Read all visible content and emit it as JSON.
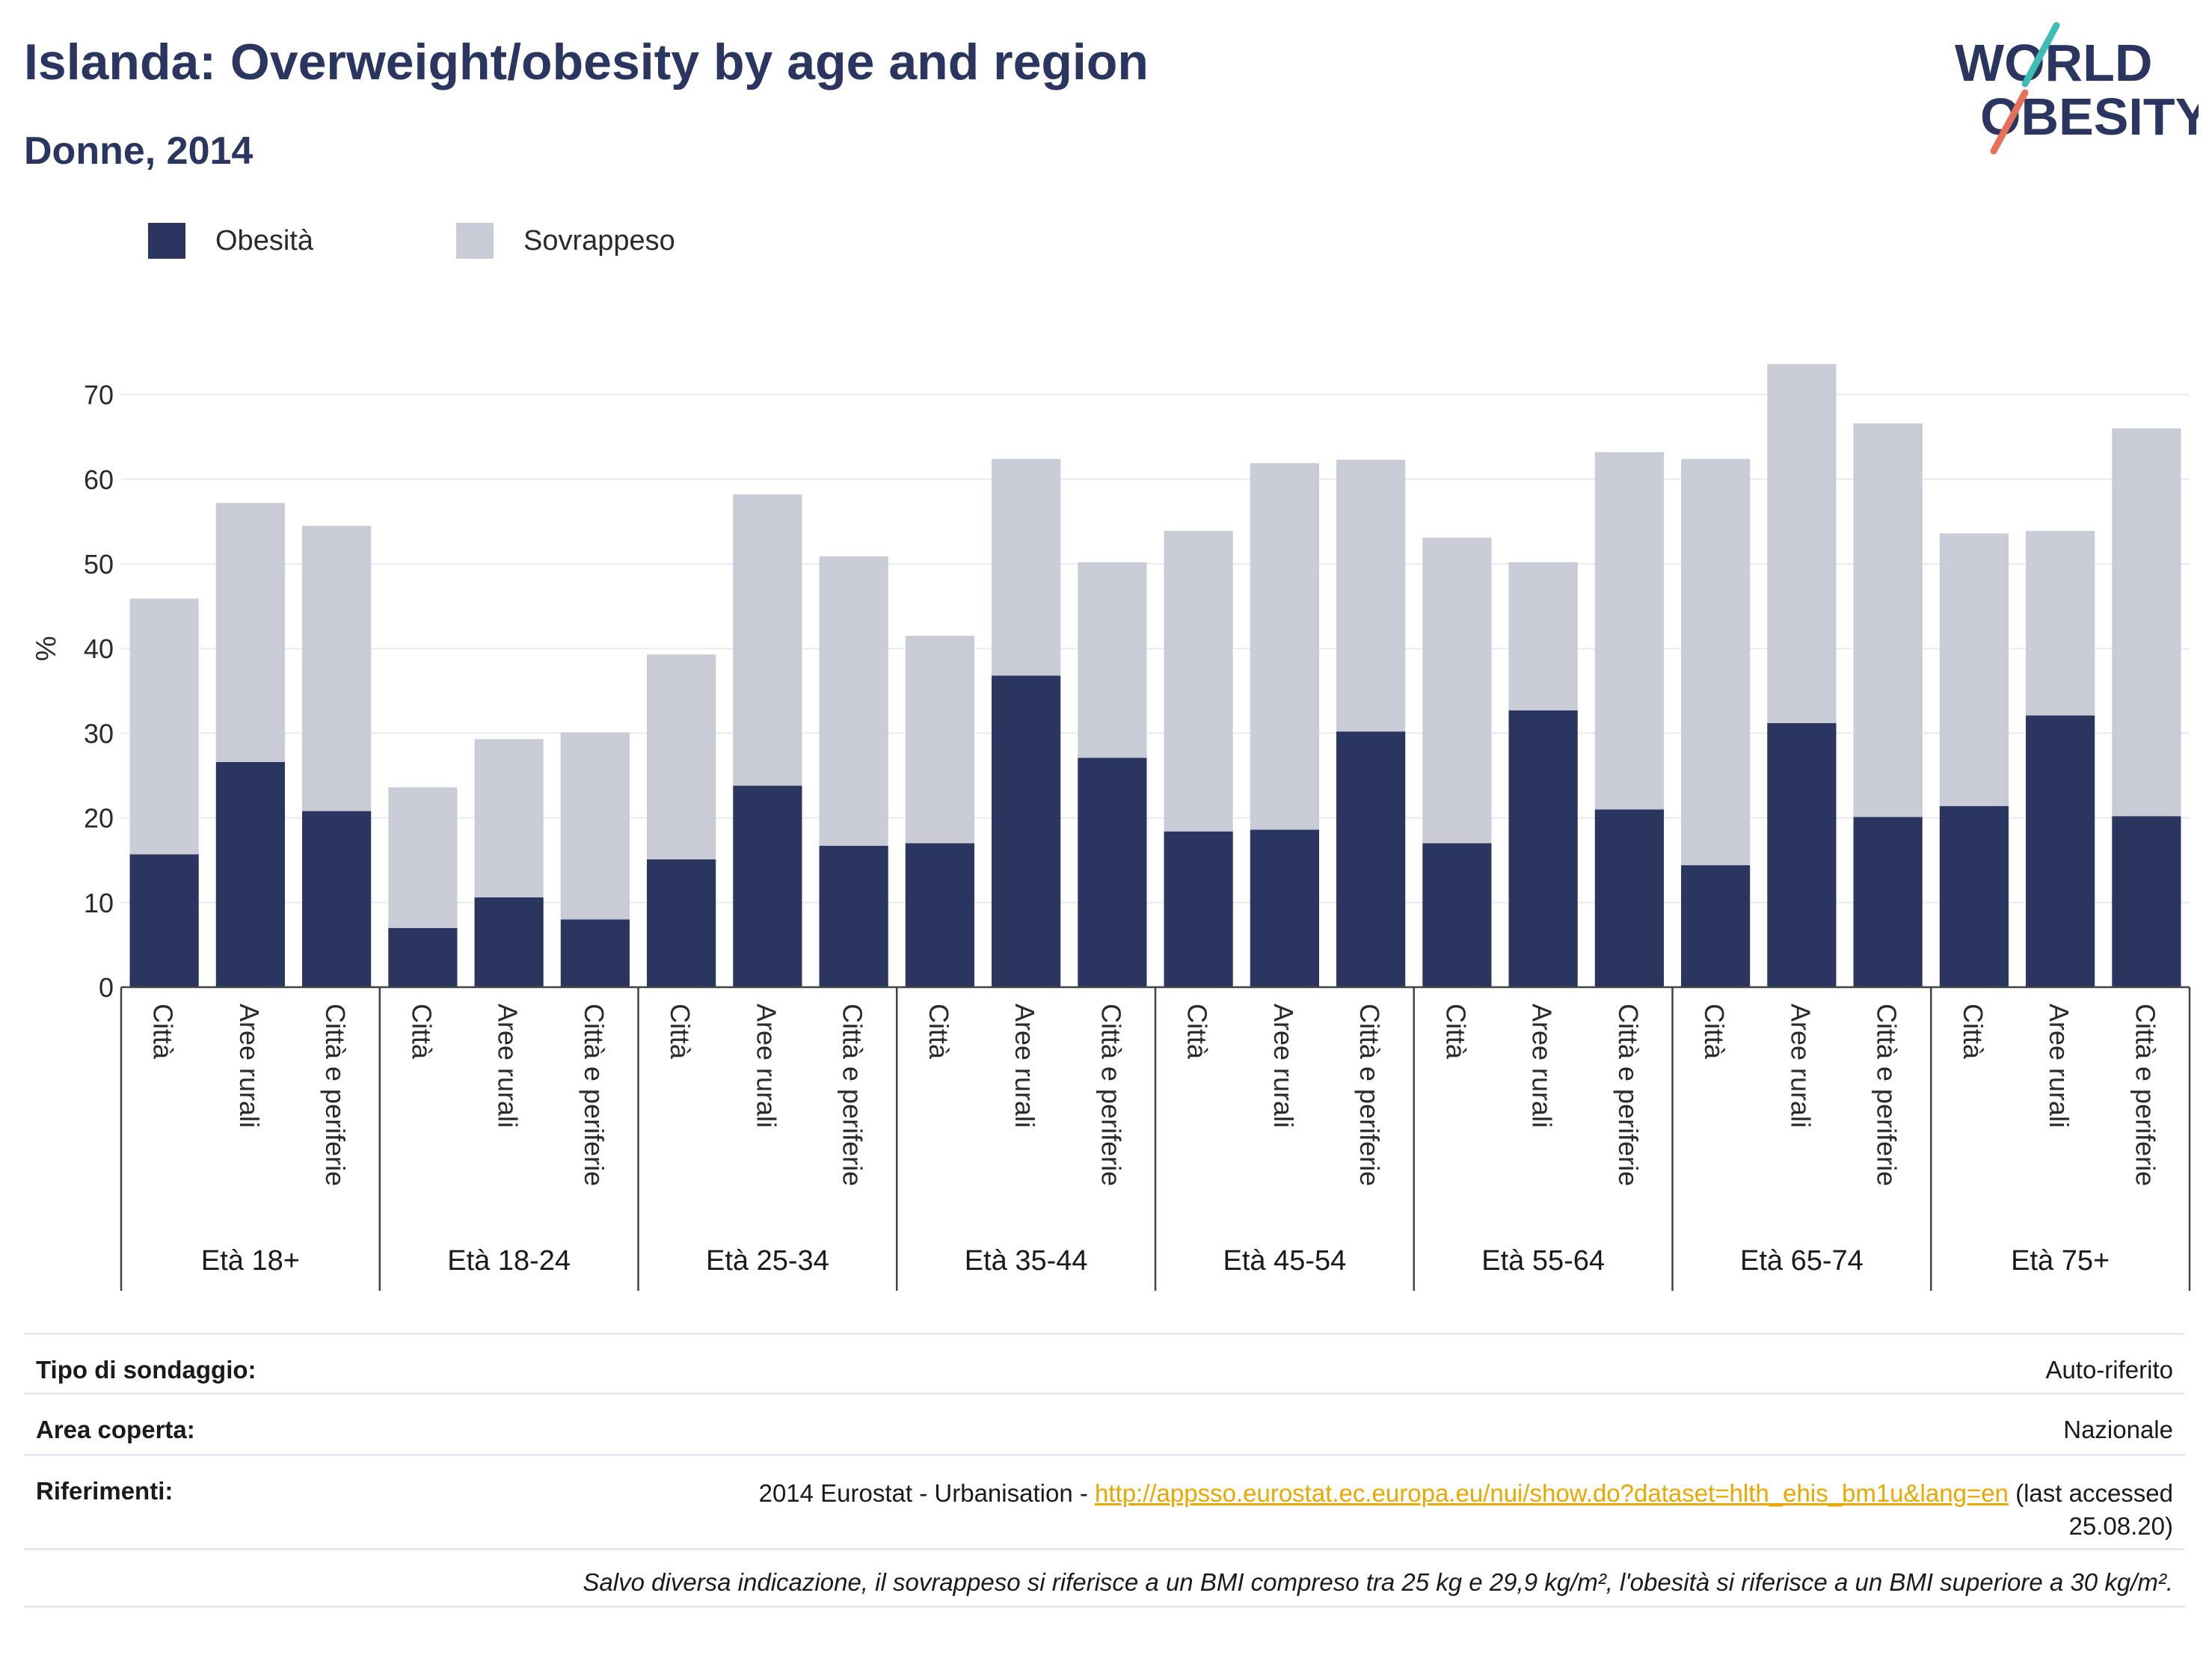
{
  "header": {
    "title": "Islanda: Overweight/obesity by age and region",
    "subtitle": "Donne, 2014"
  },
  "logo": {
    "line1": "WORLD",
    "line2": "OBESITY"
  },
  "colors": {
    "obesity": "#2a365f",
    "overweight": "#c9cbd7",
    "accent_teal": "#3dbdb4",
    "accent_red": "#e8705a"
  },
  "chart_data": {
    "type": "bar",
    "stacked": true,
    "ylabel": "%",
    "ylim": [
      0,
      75
    ],
    "yticks": [
      0,
      10,
      20,
      30,
      40,
      50,
      60,
      70
    ],
    "grid": true,
    "legend_position": "top-left",
    "groups": [
      "Età 18+",
      "Età 18-24",
      "Età 25-34",
      "Età 35-44",
      "Età 45-54",
      "Età 55-64",
      "Età 65-74",
      "Età 75+"
    ],
    "subcategories": [
      "Città",
      "Aree rurali",
      "Città e periferie"
    ],
    "series": [
      {
        "name": "Obesità",
        "values": [
          15.7,
          26.6,
          20.8,
          7.0,
          10.6,
          8.0,
          15.1,
          23.8,
          16.7,
          17.0,
          36.8,
          27.1,
          18.4,
          18.6,
          30.2,
          17.0,
          32.7,
          21.0,
          14.4,
          31.2,
          20.1,
          21.4,
          32.1,
          20.2
        ]
      },
      {
        "name": "Sovrappeso",
        "values": [
          30.2,
          30.6,
          33.7,
          16.6,
          18.7,
          22.1,
          24.2,
          34.4,
          34.2,
          24.5,
          25.6,
          23.1,
          35.5,
          43.3,
          32.1,
          36.1,
          17.5,
          42.2,
          48.0,
          42.4,
          46.5,
          32.2,
          21.8,
          45.8
        ]
      }
    ]
  },
  "info": {
    "rows": [
      {
        "key": "Tipo di sondaggio:",
        "value": "Auto-riferito"
      },
      {
        "key": "Area coperta:",
        "value": "Nazionale"
      }
    ],
    "references": {
      "key": "Riferimenti:",
      "prefix": "2014 Eurostat - Urbanisation - ",
      "link": "http://appsso.eurostat.ec.europa.eu/nui/show.do?dataset=hlth_ehis_bm1u&lang=en",
      "suffix": " (last accessed",
      "date": "25.08.20)"
    },
    "note": "Salvo diversa indicazione, il sovrappeso si riferisce a un BMI compreso tra 25 kg e 29,9 kg/m², l'obesità si riferisce a un BMI superiore a 30 kg/m²."
  }
}
